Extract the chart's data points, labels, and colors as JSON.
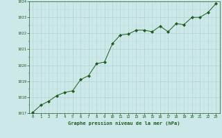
{
  "x": [
    0,
    1,
    2,
    3,
    4,
    5,
    6,
    7,
    8,
    9,
    10,
    11,
    12,
    13,
    14,
    15,
    16,
    17,
    18,
    19,
    20,
    21,
    22,
    23
  ],
  "y": [
    1017.05,
    1017.5,
    1017.75,
    1018.1,
    1018.3,
    1018.4,
    1019.1,
    1019.35,
    1020.1,
    1020.2,
    1021.35,
    1021.9,
    1021.95,
    1022.2,
    1022.2,
    1022.1,
    1022.45,
    1022.1,
    1022.6,
    1022.55,
    1023.0,
    1023.0,
    1023.3,
    1023.85
  ],
  "line_color": "#1a5c1a",
  "marker_color": "#1a5c1a",
  "bg_color": "#cce8e8",
  "grid_color_major": "#aacccc",
  "grid_color_minor": "#bbdddd",
  "xlabel": "Graphe pression niveau de la mer (hPa)",
  "xlabel_color": "#1a5c1a",
  "tick_color": "#1a5c1a",
  "ylim": [
    1017,
    1024
  ],
  "xlim": [
    -0.5,
    23.5
  ],
  "yticks": [
    1017,
    1018,
    1019,
    1020,
    1021,
    1022,
    1023,
    1024
  ],
  "xticks": [
    0,
    1,
    2,
    3,
    4,
    5,
    6,
    7,
    8,
    9,
    10,
    11,
    12,
    13,
    14,
    15,
    16,
    17,
    18,
    19,
    20,
    21,
    22,
    23
  ]
}
